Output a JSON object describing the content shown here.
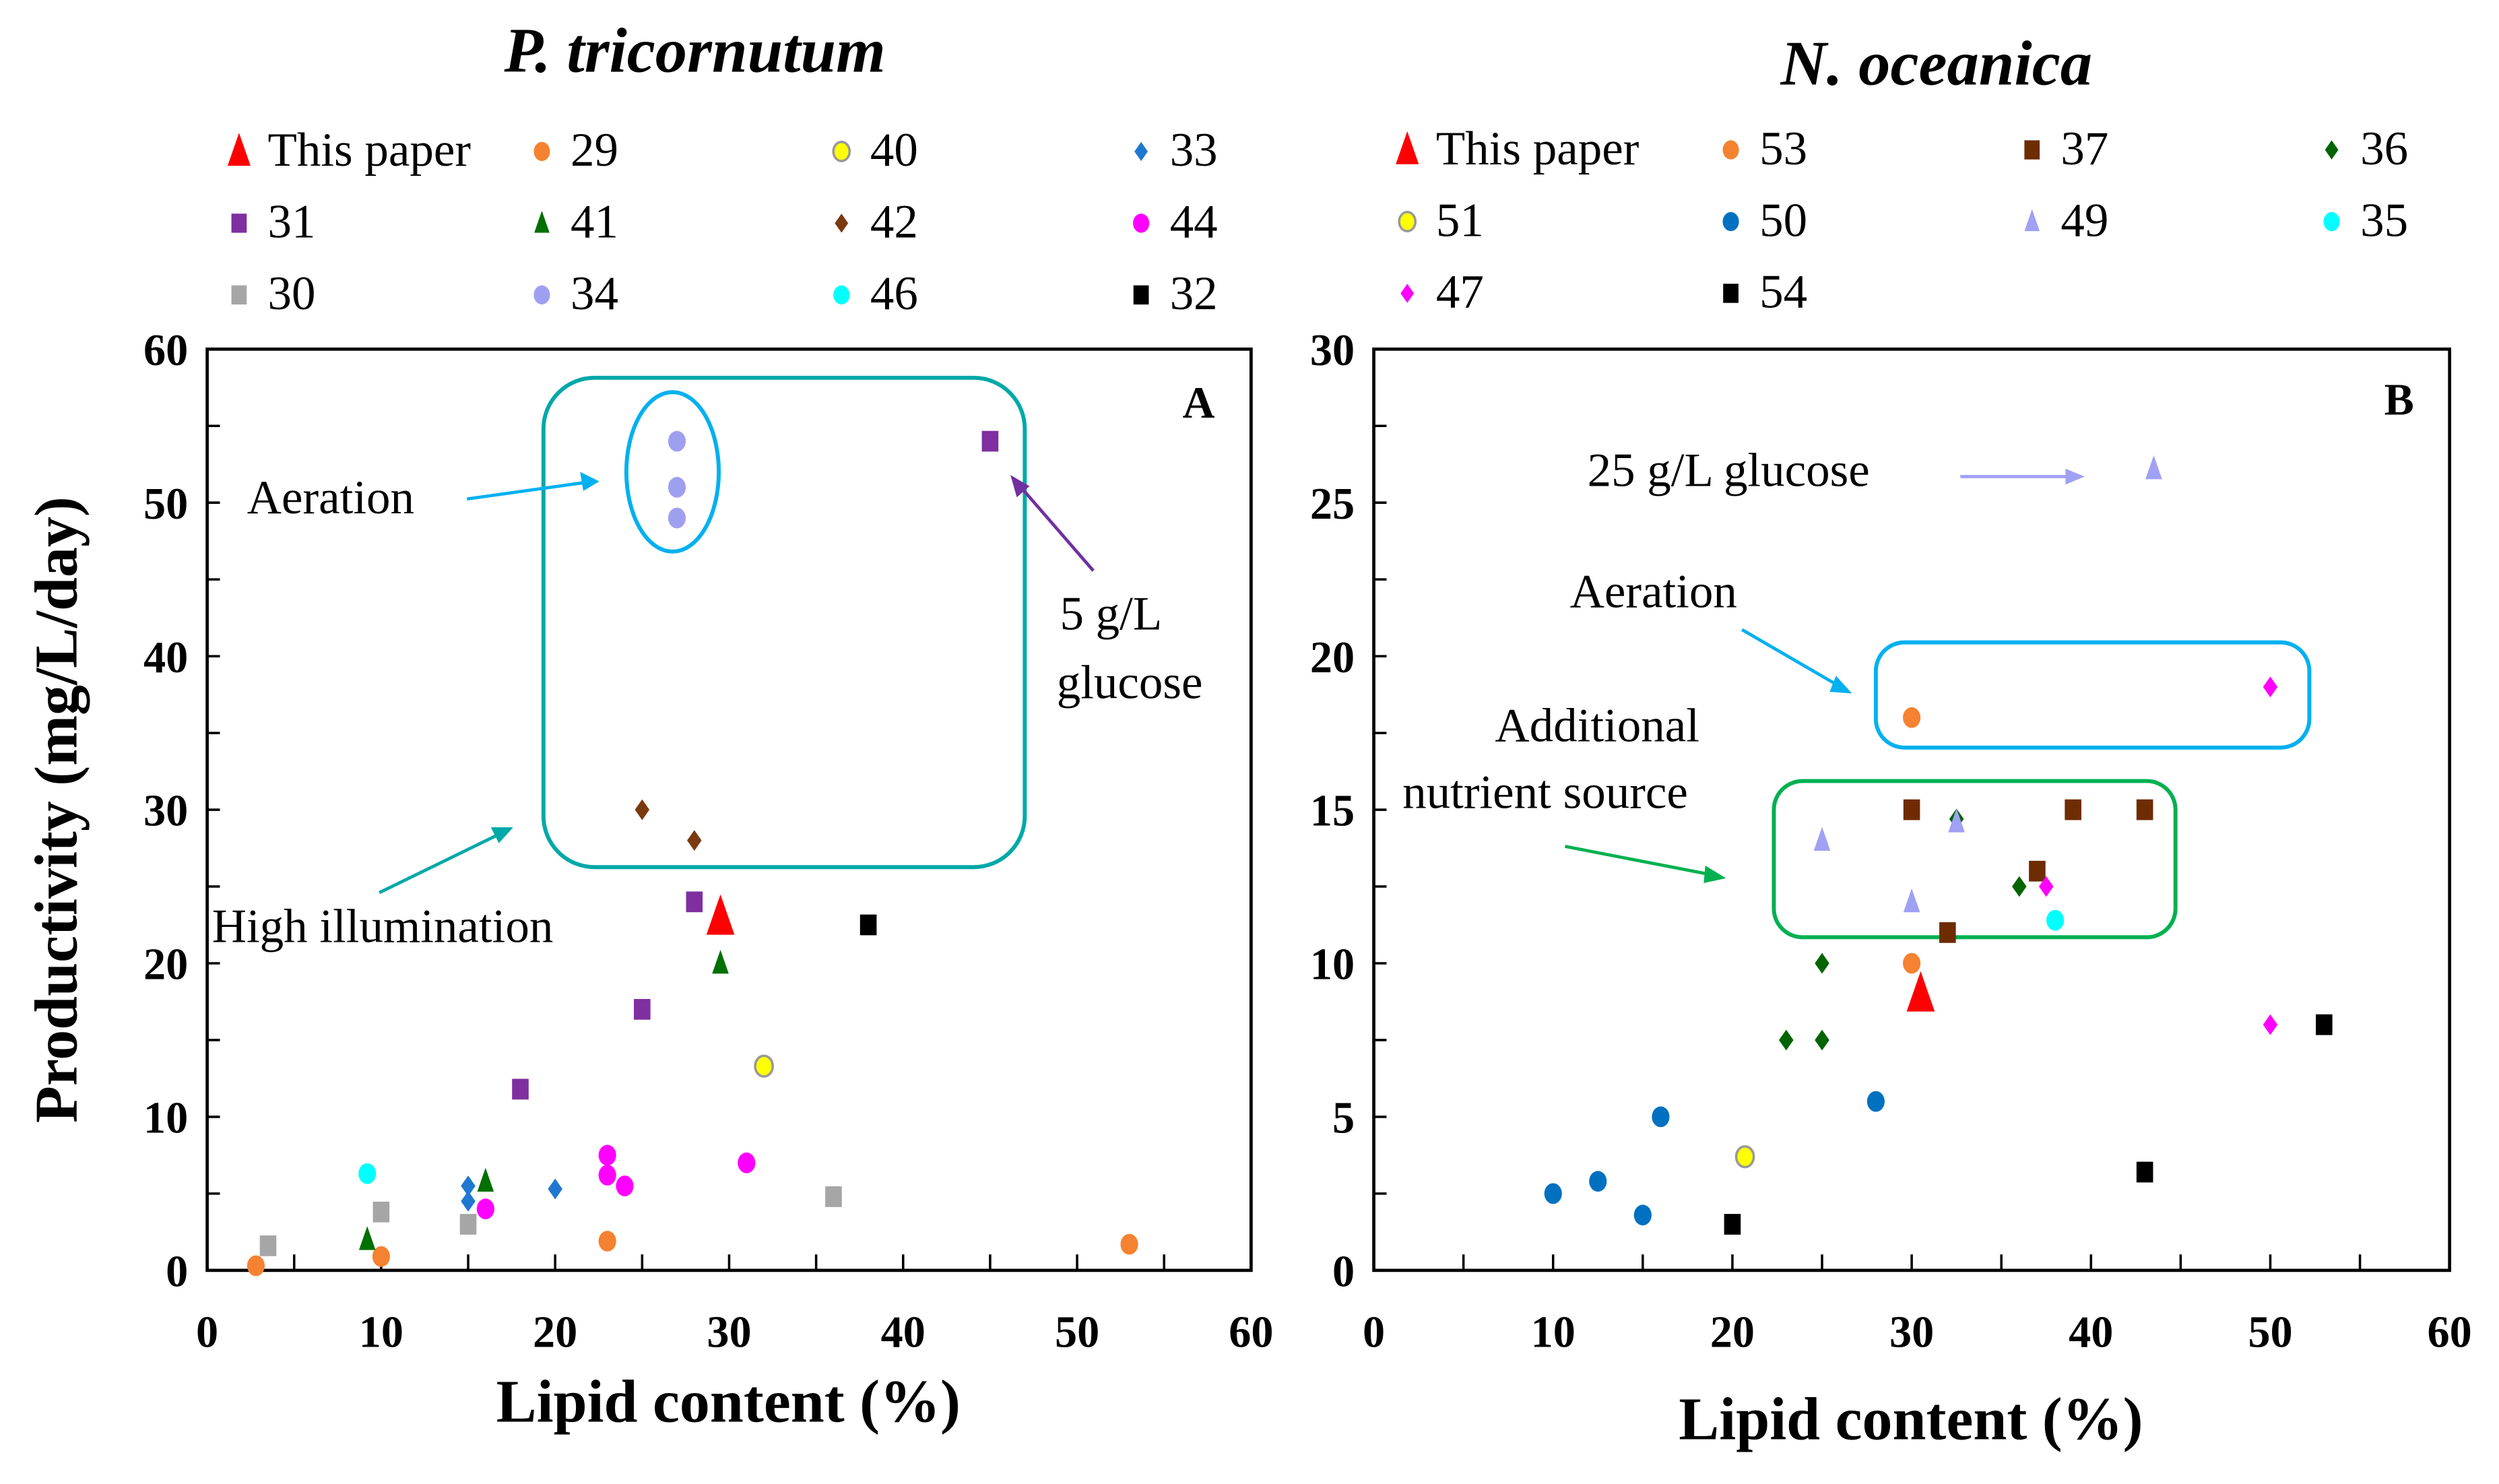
{
  "chart_data": [
    {
      "type": "scatter",
      "panel_label": "A",
      "title": "P. tricornutum",
      "xlabel": "Lipid content (%)",
      "ylabel": "Productivity (mg/L/day)",
      "xlim": [
        0,
        60
      ],
      "ylim": [
        0,
        60
      ],
      "xticks": [
        "0",
        "10",
        "20",
        "30",
        "40",
        "50",
        "60"
      ],
      "yticks": [
        "0",
        "10",
        "20",
        "30",
        "40",
        "50",
        "60"
      ],
      "legend_placement": "top",
      "series": [
        {
          "name": "This paper",
          "shape": "triangle",
          "color": "#ff0000",
          "big": true,
          "points": [
            [
              29.5,
              23
            ]
          ]
        },
        {
          "name": "29",
          "shape": "circle",
          "color": "#f58231",
          "points": [
            [
              2.8,
              0.3
            ],
            [
              10,
              0.9
            ],
            [
              23,
              1.9
            ],
            [
              53,
              1.7
            ]
          ]
        },
        {
          "name": "40",
          "shape": "circle-outline",
          "color": "#ffff00",
          "points": [
            [
              32,
              13.3
            ]
          ]
        },
        {
          "name": "33",
          "shape": "diamond",
          "color": "#1f77d0",
          "points": [
            [
              15,
              5.5
            ],
            [
              15,
              4.5
            ],
            [
              20,
              5.3
            ],
            [
              16,
              4
            ]
          ]
        },
        {
          "name": "31",
          "shape": "square",
          "color": "#7f2fa0",
          "points": [
            [
              45,
              54
            ],
            [
              28,
              24
            ],
            [
              25,
              17
            ],
            [
              18,
              11.8
            ]
          ]
        },
        {
          "name": "41",
          "shape": "triangle",
          "color": "#007000",
          "points": [
            [
              9.2,
              2
            ],
            [
              16,
              5.8
            ],
            [
              29.5,
              20
            ]
          ]
        },
        {
          "name": "42",
          "shape": "diamond",
          "color": "#7a3a10",
          "points": [
            [
              25,
              30
            ],
            [
              28,
              28
            ]
          ]
        },
        {
          "name": "44",
          "shape": "circle",
          "color": "#ff00ff",
          "points": [
            [
              23,
              7.5
            ],
            [
              23,
              6.2
            ],
            [
              24,
              5.5
            ],
            [
              31,
              7
            ],
            [
              16,
              4
            ]
          ]
        },
        {
          "name": "30",
          "shape": "square",
          "color": "#a6a6a6",
          "points": [
            [
              3.5,
              1.6
            ],
            [
              10,
              3.8
            ],
            [
              15,
              3
            ],
            [
              36,
              4.8
            ]
          ]
        },
        {
          "name": "34",
          "shape": "circle",
          "color": "#9f9ff0",
          "points": [
            [
              27,
              54
            ],
            [
              27,
              51
            ],
            [
              27,
              49
            ]
          ]
        },
        {
          "name": "46",
          "shape": "circle",
          "color": "#00ffff",
          "points": [
            [
              9.2,
              6.3
            ]
          ]
        },
        {
          "name": "32",
          "shape": "square",
          "color": "#000000",
          "points": [
            [
              38,
              22.5
            ]
          ]
        }
      ],
      "annotations": [
        "Aeration",
        "5 g/L",
        "glucose",
        "High illumination"
      ]
    },
    {
      "type": "scatter",
      "panel_label": "B",
      "title": "N. oceanica",
      "xlabel": "Lipid content (%)",
      "ylabel": "",
      "xlim": [
        0,
        60
      ],
      "ylim": [
        0,
        30
      ],
      "xticks": [
        "0",
        "10",
        "20",
        "30",
        "40",
        "50",
        "60"
      ],
      "yticks": [
        "0",
        "5",
        "10",
        "15",
        "20",
        "25",
        "30"
      ],
      "legend_placement": "top",
      "series": [
        {
          "name": "This paper",
          "shape": "triangle",
          "color": "#ff0000",
          "big": true,
          "points": [
            [
              30.5,
              9
            ]
          ]
        },
        {
          "name": "53",
          "shape": "circle",
          "color": "#f58231",
          "points": [
            [
              30,
              18
            ],
            [
              30,
              10
            ]
          ]
        },
        {
          "name": "37",
          "shape": "square",
          "color": "#6e2c00",
          "points": [
            [
              30,
              15
            ],
            [
              39,
              15
            ],
            [
              43,
              15
            ],
            [
              37,
              13
            ],
            [
              32,
              11
            ]
          ]
        },
        {
          "name": "36",
          "shape": "diamond",
          "color": "#006400",
          "points": [
            [
              32.5,
              14.7
            ],
            [
              36,
              12.5
            ],
            [
              25,
              10
            ],
            [
              23,
              7.5
            ],
            [
              25,
              7.5
            ]
          ]
        },
        {
          "name": "51",
          "shape": "circle-outline",
          "color": "#ffff00",
          "points": [
            [
              20.7,
              3.7
            ]
          ]
        },
        {
          "name": "50",
          "shape": "circle",
          "color": "#0070c0",
          "points": [
            [
              10,
              2.5
            ],
            [
              12.5,
              2.9
            ],
            [
              15,
              1.8
            ],
            [
              16,
              5
            ],
            [
              28,
              5.5
            ]
          ]
        },
        {
          "name": "49",
          "shape": "triangle",
          "color": "#a0a0f5",
          "points": [
            [
              43.5,
              26.1
            ],
            [
              25,
              14
            ],
            [
              30,
              12
            ],
            [
              32.5,
              14.6
            ]
          ]
        },
        {
          "name": "35",
          "shape": "circle",
          "color": "#00ffff",
          "points": [
            [
              38,
              11.4
            ]
          ]
        },
        {
          "name": "47",
          "shape": "diamond",
          "color": "#ff00ff",
          "points": [
            [
              50,
              19
            ],
            [
              37.5,
              12.5
            ],
            [
              50,
              8
            ]
          ]
        },
        {
          "name": "54",
          "shape": "square",
          "color": "#000000",
          "points": [
            [
              20,
              1.5
            ],
            [
              43,
              3.2
            ],
            [
              53,
              8
            ]
          ]
        }
      ],
      "annotations": [
        "25 g/L glucose",
        "Aeration",
        "Additional",
        "nutrient source"
      ]
    }
  ]
}
